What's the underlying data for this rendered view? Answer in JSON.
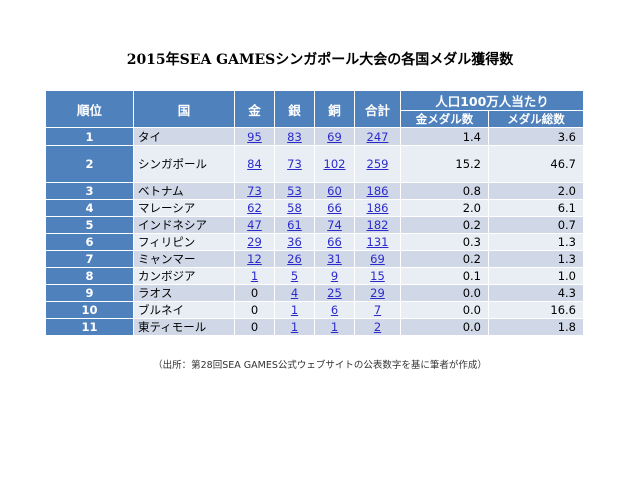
{
  "title": "2015年SEA GAMESシンガポール大会の各国メダル獲得数",
  "headers": {
    "rank": "順位",
    "country": "国",
    "gold": "金",
    "silver": "銀",
    "bronze": "銅",
    "total": "合計",
    "per_capita": "人口100万人当たり",
    "gold_count": "金メダル数",
    "medal_total": "メダル総数"
  },
  "rows": [
    {
      "rank": "1",
      "country": "タイ",
      "gold": "95",
      "silver": "83",
      "bronze": "69",
      "total": "247",
      "pc_gold": "1.4",
      "pc_total": "3.6"
    },
    {
      "rank": "2",
      "country": "シンガポール",
      "gold": "84",
      "silver": "73",
      "bronze": "102",
      "total": "259",
      "pc_gold": "15.2",
      "pc_total": "46.7"
    },
    {
      "rank": "3",
      "country": "ベトナム",
      "gold": "73",
      "silver": "53",
      "bronze": "60",
      "total": "186",
      "pc_gold": "0.8",
      "pc_total": "2.0"
    },
    {
      "rank": "4",
      "country": "マレーシア",
      "gold": "62",
      "silver": "58",
      "bronze": "66",
      "total": "186",
      "pc_gold": "2.0",
      "pc_total": "6.1"
    },
    {
      "rank": "5",
      "country": "インドネシア",
      "gold": "47",
      "silver": "61",
      "bronze": "74",
      "total": "182",
      "pc_gold": "0.2",
      "pc_total": "0.7"
    },
    {
      "rank": "6",
      "country": "フィリピン",
      "gold": "29",
      "silver": "36",
      "bronze": "66",
      "total": "131",
      "pc_gold": "0.3",
      "pc_total": "1.3"
    },
    {
      "rank": "7",
      "country": "ミャンマー",
      "gold": "12",
      "silver": "26",
      "bronze": "31",
      "total": "69",
      "pc_gold": "0.2",
      "pc_total": "1.3"
    },
    {
      "rank": "8",
      "country": "カンボジア",
      "gold": "1",
      "silver": "5",
      "bronze": "9",
      "total": "15",
      "pc_gold": "0.1",
      "pc_total": "1.0"
    },
    {
      "rank": "9",
      "country": "ラオス",
      "gold": "0",
      "silver": "4",
      "bronze": "25",
      "total": "29",
      "pc_gold": "0.0",
      "pc_total": "4.3"
    },
    {
      "rank": "10",
      "country": "ブルネイ",
      "gold": "0",
      "silver": "1",
      "bronze": "6",
      "total": "7",
      "pc_gold": "0.0",
      "pc_total": "16.6"
    },
    {
      "rank": "11",
      "country": "東ティモール",
      "gold": "0",
      "silver": "1",
      "bronze": "1",
      "total": "2",
      "pc_gold": "0.0",
      "pc_total": "1.8"
    }
  ],
  "source": "（出所：第28回SEA GAMES公式ウェブサイトの公表数字を基に筆者が作成）"
}
